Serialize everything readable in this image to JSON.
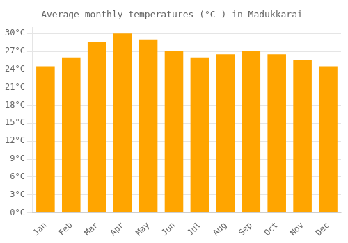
{
  "chart_data": {
    "type": "bar",
    "title": "Average monthly temperatures (°C ) in Madukkarai",
    "categories": [
      "Jan",
      "Feb",
      "Mar",
      "Apr",
      "May",
      "Jun",
      "Jul",
      "Aug",
      "Sep",
      "Oct",
      "Nov",
      "Dec"
    ],
    "values": [
      24.5,
      26.0,
      28.5,
      30.0,
      29.0,
      27.0,
      26.0,
      26.5,
      27.0,
      26.5,
      25.5,
      24.5
    ],
    "color": "#FFA500",
    "ylim": [
      0,
      31
    ],
    "yticks": [
      {
        "value": 0,
        "label": "0°C"
      },
      {
        "value": 3,
        "label": "3°C"
      },
      {
        "value": 6,
        "label": "6°C"
      },
      {
        "value": 9,
        "label": "9°C"
      },
      {
        "value": 12,
        "label": "12°C"
      },
      {
        "value": 15,
        "label": "15°C"
      },
      {
        "value": 18,
        "label": "18°C"
      },
      {
        "value": 21,
        "label": "21°C"
      },
      {
        "value": 24,
        "label": "24°C"
      },
      {
        "value": 27,
        "label": "27°C"
      },
      {
        "value": 30,
        "label": "30°C"
      }
    ],
    "grid": true
  }
}
